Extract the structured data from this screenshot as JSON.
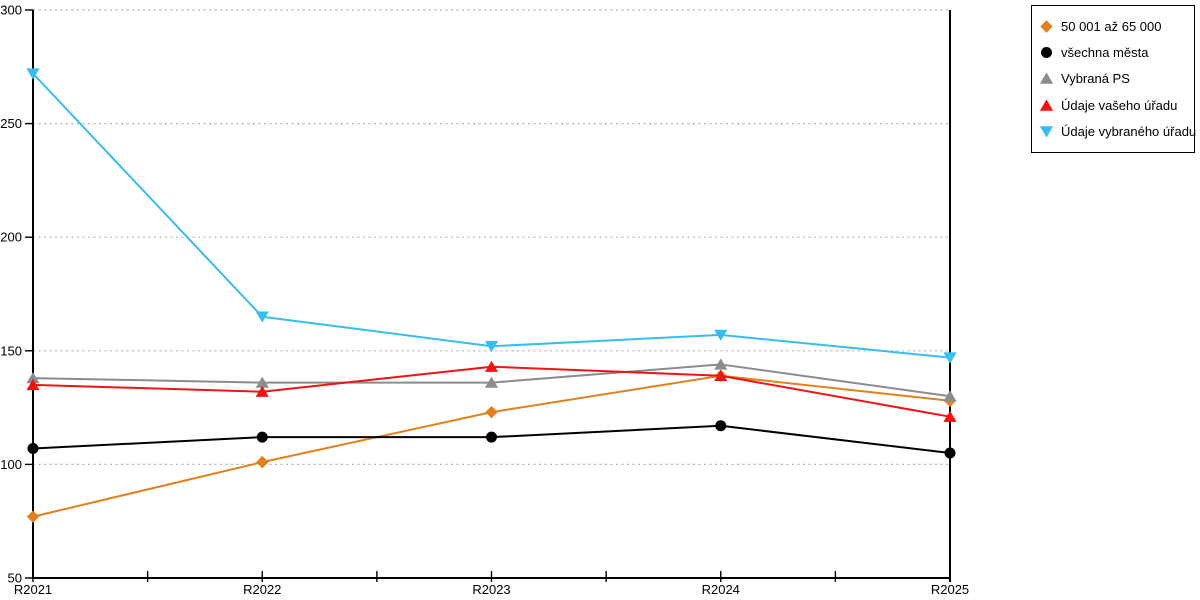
{
  "chart_data": {
    "type": "line",
    "categories": [
      "R2021",
      "R2022",
      "R2023",
      "R2024",
      "R2025"
    ],
    "series": [
      {
        "name": "50 001 až 65 000",
        "marker": "diamond",
        "color": "#E2801E",
        "values": [
          77,
          101,
          123,
          139,
          128
        ]
      },
      {
        "name": "všechna města",
        "marker": "circle",
        "color": "#000000",
        "values": [
          107,
          112,
          112,
          117,
          105
        ]
      },
      {
        "name": "Vybraná PS",
        "marker": "triangle-up",
        "color": "#8C8C8C",
        "values": [
          138,
          136,
          136,
          144,
          130
        ]
      },
      {
        "name": "Údaje vašeho úřadu",
        "marker": "triangle-up",
        "color": "#EE1414",
        "values": [
          135,
          132,
          143,
          139,
          121
        ]
      },
      {
        "name": "Údaje vybraného úřadu",
        "marker": "triangle-down",
        "color": "#38BDEF",
        "values": [
          272,
          165,
          152,
          157,
          147
        ]
      }
    ],
    "ylim": [
      50,
      300
    ],
    "y_ticks": [
      50,
      100,
      150,
      200,
      250,
      300
    ],
    "xlabel": "",
    "ylabel": "",
    "title": "",
    "grid": true,
    "legend_position": "top-right"
  },
  "colors": {
    "background": "#ffffff",
    "gridline": "#b3b3b3",
    "axis": "#000000",
    "legend_border": "#000000"
  }
}
